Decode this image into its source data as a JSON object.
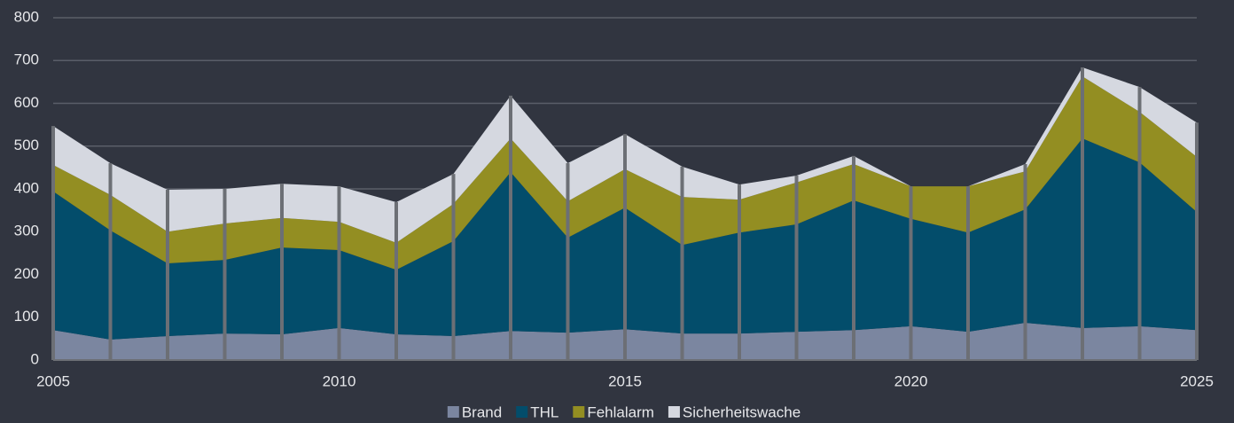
{
  "chart_data": {
    "type": "stacked_area",
    "x": [
      2005,
      2006,
      2007,
      2008,
      2009,
      2010,
      2011,
      2012,
      2013,
      2014,
      2015,
      2016,
      2017,
      2018,
      2019,
      2020,
      2021,
      2022,
      2023,
      2024,
      2025
    ],
    "series": [
      {
        "name": "Brand",
        "color": "#7b86a0",
        "values": [
          70,
          48,
          56,
          62,
          60,
          75,
          60,
          56,
          68,
          64,
          72,
          62,
          62,
          66,
          70,
          79,
          66,
          87,
          75,
          79,
          70
        ]
      },
      {
        "name": "THL",
        "color": "#034d6b",
        "values": [
          324,
          255,
          170,
          172,
          203,
          182,
          151,
          222,
          371,
          222,
          284,
          207,
          236,
          251,
          303,
          251,
          232,
          265,
          443,
          383,
          276
        ]
      },
      {
        "name": "Fehlalarm",
        "color": "#938e22",
        "values": [
          62,
          83,
          74,
          85,
          69,
          66,
          63,
          87,
          79,
          85,
          90,
          112,
          77,
          98,
          85,
          76,
          108,
          89,
          145,
          118,
          129
        ]
      },
      {
        "name": "Sicherheitswache",
        "color": "#d5d8e0",
        "values": [
          91,
          74,
          98,
          81,
          80,
          83,
          95,
          70,
          100,
          89,
          82,
          71,
          35,
          16,
          19,
          0,
          0,
          17,
          21,
          58,
          80
        ]
      }
    ],
    "xlim": [
      2005,
      2025
    ],
    "xticks": [
      2005,
      2010,
      2015,
      2020,
      2025
    ],
    "ylim": [
      0,
      800
    ],
    "yticks": [
      0,
      100,
      200,
      300,
      400,
      500,
      600,
      700,
      800
    ],
    "grid": true,
    "legend": "bottom"
  }
}
